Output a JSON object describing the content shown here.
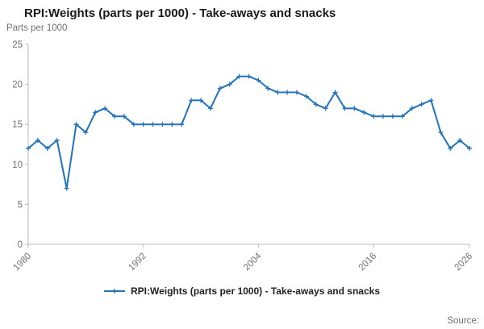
{
  "title": "RPI:Weights (parts per 1000) - Take-aways and snacks",
  "y_unit_label": "Parts per 1000",
  "source_label": "Source:",
  "legend": {
    "label": "RPI:Weights (parts per 1000) - Take-aways and snacks"
  },
  "colors": {
    "line": "#2073bc",
    "axis": "#b8b8b8",
    "tick_text": "#707071",
    "title_text": "#1a1a1a"
  },
  "chart_data": {
    "type": "line",
    "title": "RPI:Weights (parts per 1000) - Take-aways and snacks",
    "xlabel": "",
    "ylabel": "Parts per 1000",
    "ylim": [
      0,
      25
    ],
    "yticks": [
      0,
      5,
      10,
      15,
      20,
      25
    ],
    "xticks": [
      1980,
      1992,
      2004,
      2016,
      2026
    ],
    "grid": false,
    "legend_position": "bottom",
    "marker": "plus",
    "x": [
      1980,
      1981,
      1982,
      1983,
      1984,
      1985,
      1986,
      1987,
      1988,
      1989,
      1990,
      1991,
      1992,
      1993,
      1994,
      1995,
      1996,
      1997,
      1998,
      1999,
      2000,
      2001,
      2002,
      2003,
      2004,
      2005,
      2006,
      2007,
      2008,
      2009,
      2010,
      2011,
      2012,
      2013,
      2014,
      2015,
      2016,
      2017,
      2018,
      2019,
      2020,
      2021,
      2022,
      2023,
      2024,
      2025,
      2026
    ],
    "series": [
      {
        "name": "RPI:Weights (parts per 1000) - Take-aways and snacks",
        "values": [
          12,
          13,
          12,
          13,
          7,
          15,
          14,
          16.5,
          17,
          16,
          16,
          15,
          15,
          15,
          15,
          15,
          15,
          18,
          18,
          17,
          19.5,
          20,
          21,
          21,
          20.5,
          19.5,
          19,
          19,
          19,
          18.5,
          17.5,
          17,
          19,
          17,
          17,
          16.5,
          16,
          16,
          16,
          16,
          17,
          17.5,
          18,
          14,
          12,
          13,
          12
        ]
      }
    ]
  }
}
